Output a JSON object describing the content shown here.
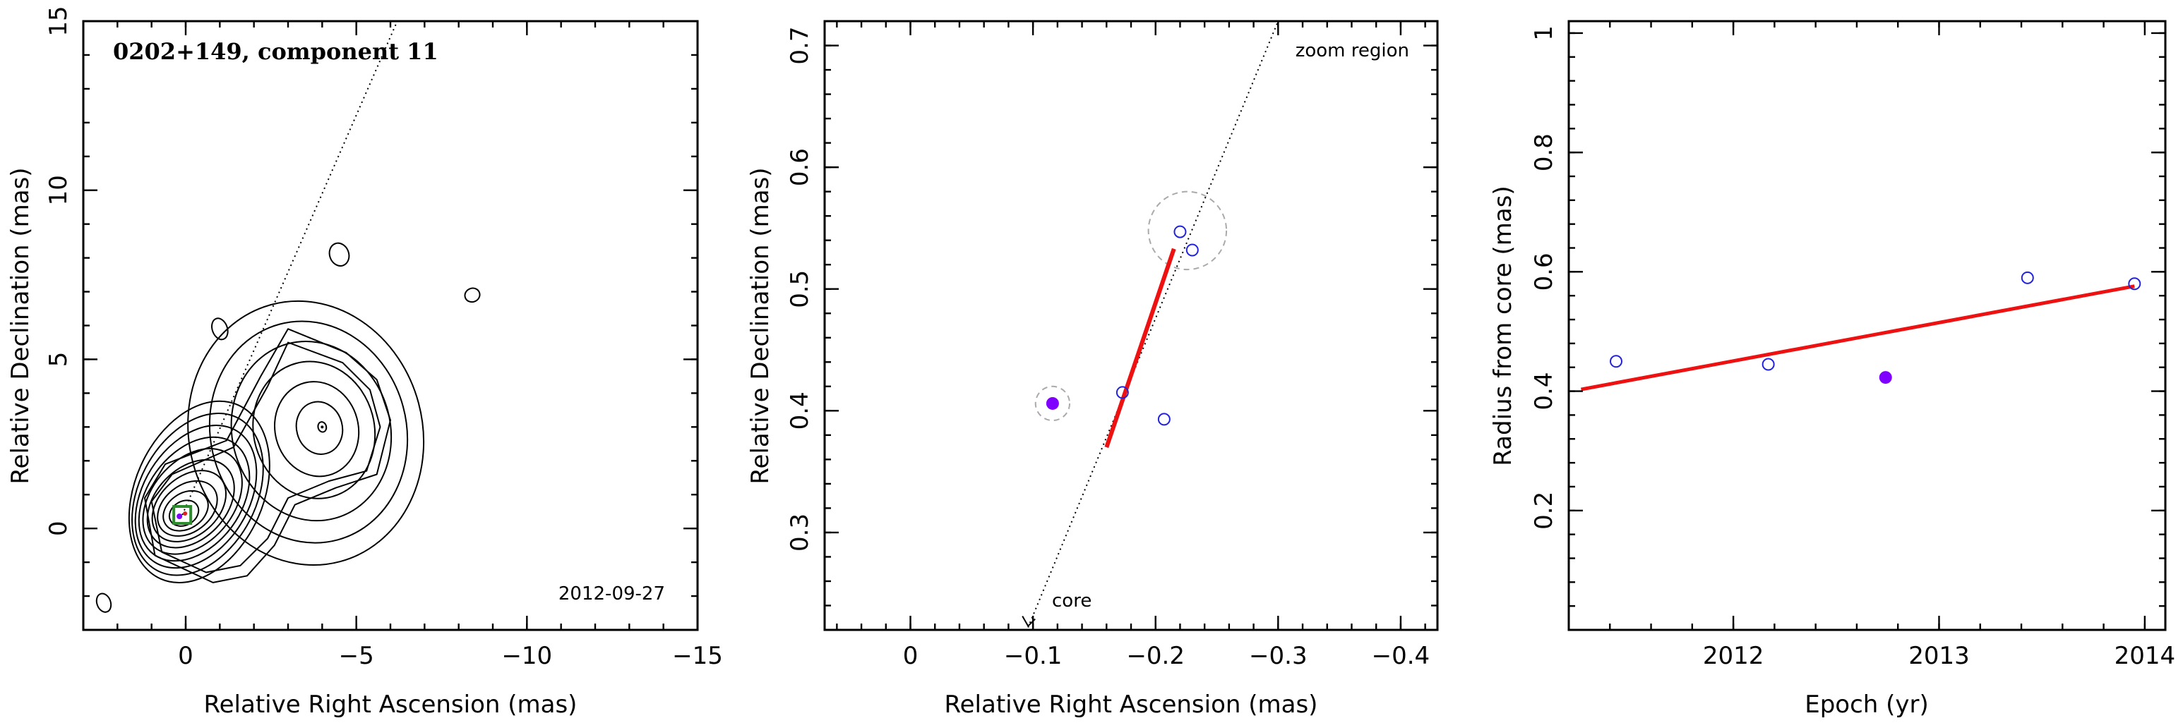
{
  "chart_data": [
    {
      "type": "contour",
      "title": "0202+149, component 11",
      "epoch_label": "2012-09-27",
      "xlabel": "Relative Right Ascension (mas)",
      "ylabel": "Relative Declination (mas)",
      "xlim": [
        3,
        -15
      ],
      "ylim": [
        -3,
        15
      ],
      "xticks": [
        0,
        -5,
        -10,
        -15
      ],
      "yticks": [
        0,
        5,
        10,
        15
      ],
      "xtick_labels": [
        "0",
        "−5",
        "−10",
        "−15"
      ],
      "ytick_labels": [
        "0",
        "5",
        "10",
        "15"
      ],
      "direction_line": [
        [
          0.1,
          0.4
        ],
        [
          -6.2,
          15
        ]
      ],
      "marker_box": {
        "x": 0.1,
        "y": 0.4,
        "color": "#2e8b2e"
      }
    },
    {
      "type": "scatter",
      "xlabel": "Relative Right Ascension (mas)",
      "ylabel": "Relative Declination (mas)",
      "xlim": [
        0.07,
        -0.43
      ],
      "ylim": [
        0.22,
        0.72
      ],
      "xticks": [
        0,
        -0.1,
        -0.2,
        -0.3,
        -0.4
      ],
      "yticks": [
        0.3,
        0.4,
        0.5,
        0.6,
        0.7
      ],
      "xtick_labels": [
        "0",
        "−0.1",
        "−0.2",
        "−0.3",
        "−0.4"
      ],
      "ytick_labels": [
        "0.3",
        "0.4",
        "0.5",
        "0.6",
        "0.7"
      ],
      "annotations": {
        "zoom": "zoom region",
        "core": "core"
      },
      "points_open": [
        {
          "x": -0.173,
          "y": 0.415
        },
        {
          "x": -0.207,
          "y": 0.393
        },
        {
          "x": -0.22,
          "y": 0.547
        },
        {
          "x": -0.23,
          "y": 0.532
        }
      ],
      "points_filled": [
        {
          "x": -0.116,
          "y": 0.406
        }
      ],
      "dashed_circles": [
        {
          "x": -0.116,
          "y": 0.406,
          "r": 0.014
        },
        {
          "x": -0.226,
          "y": 0.548,
          "r": 0.032
        }
      ],
      "fit_line": [
        [
          -0.16,
          0.37
        ],
        [
          -0.215,
          0.533
        ]
      ],
      "dotted_line": [
        [
          -0.096,
          0.222
        ],
        [
          -0.3,
          0.72
        ]
      ],
      "colors": {
        "open": "#2222dd",
        "filled": "#7f00ff",
        "fit": "#ee1111",
        "circle": "#aaaaaa"
      }
    },
    {
      "type": "scatter",
      "xlabel": "Epoch (yr)",
      "ylabel": "Radius from core (mas)",
      "xlim": [
        2011.2,
        2014.1
      ],
      "ylim": [
        0,
        1.02
      ],
      "xticks": [
        2012,
        2013,
        2014
      ],
      "yticks": [
        0.2,
        0.4,
        0.6,
        0.8,
        1
      ],
      "xtick_labels": [
        "2012",
        "2013",
        "2014"
      ],
      "ytick_labels": [
        "0.2",
        "0.4",
        "0.6",
        "0.8",
        "1"
      ],
      "points_open": [
        {
          "x": 2011.43,
          "y": 0.45
        },
        {
          "x": 2012.17,
          "y": 0.445
        },
        {
          "x": 2013.43,
          "y": 0.59
        },
        {
          "x": 2013.95,
          "y": 0.58
        }
      ],
      "points_filled": [
        {
          "x": 2012.74,
          "y": 0.423
        }
      ],
      "fit_line": [
        [
          2011.26,
          0.403
        ],
        [
          2013.95,
          0.576
        ]
      ],
      "colors": {
        "open": "#2222dd",
        "filled": "#7f00ff",
        "fit": "#ee1111"
      }
    }
  ]
}
